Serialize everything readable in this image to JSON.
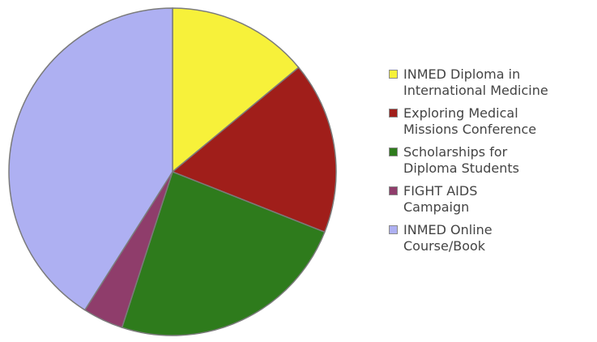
{
  "chart_data": {
    "type": "pie",
    "title": "",
    "legend_position": "right",
    "slices": [
      {
        "label_lines": [
          "INMED Diploma in",
          "International Medicine"
        ],
        "value": 14,
        "color": "#F7F13A"
      },
      {
        "label_lines": [
          "Exploring Medical",
          "Missions Conference"
        ],
        "value": 17,
        "color": "#A01E1A"
      },
      {
        "label_lines": [
          "Scholarships for",
          "Diploma Students"
        ],
        "value": 24,
        "color": "#2E7B1C"
      },
      {
        "label_lines": [
          "FIGHT AIDS",
          "Campaign"
        ],
        "value": 4,
        "color": "#8F3D6B"
      },
      {
        "label_lines": [
          "INMED Online",
          "Course/Book"
        ],
        "value": 41,
        "color": "#AEB0F2"
      }
    ]
  }
}
